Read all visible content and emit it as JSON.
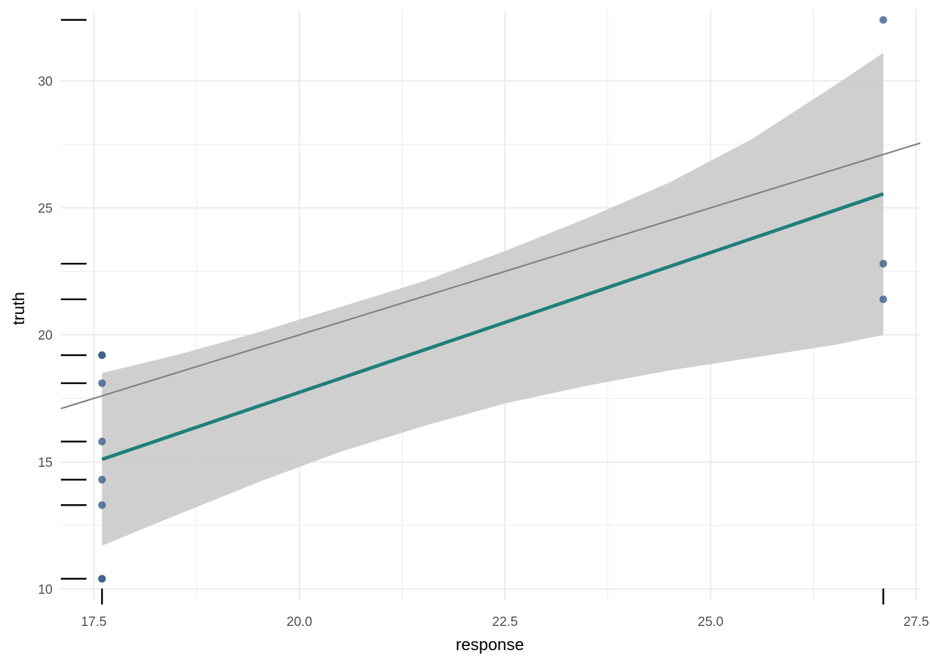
{
  "chart_data": {
    "type": "scatter",
    "title": "",
    "xlabel": "response",
    "ylabel": "truth",
    "xlim": [
      17.1,
      27.55
    ],
    "ylim": [
      9.55,
      32.8
    ],
    "x_ticks": [
      17.5,
      20.0,
      22.5,
      25.0,
      27.5
    ],
    "x_tick_labels": [
      "17.5",
      "20.0",
      "22.5",
      "25.0",
      "27.5"
    ],
    "y_ticks": [
      10,
      15,
      20,
      25,
      30
    ],
    "y_tick_labels": [
      "10",
      "15",
      "20",
      "25",
      "30"
    ],
    "grid": true,
    "legend": "none",
    "points": [
      {
        "x": 17.6,
        "y": 19.2
      },
      {
        "x": 17.6,
        "y": 19.2
      },
      {
        "x": 17.6,
        "y": 18.1
      },
      {
        "x": 17.6,
        "y": 15.8
      },
      {
        "x": 17.6,
        "y": 14.3
      },
      {
        "x": 17.6,
        "y": 13.3
      },
      {
        "x": 17.6,
        "y": 10.4
      },
      {
        "x": 17.6,
        "y": 10.4
      },
      {
        "x": 27.1,
        "y": 32.4
      },
      {
        "x": 27.1,
        "y": 22.8
      },
      {
        "x": 27.1,
        "y": 21.4
      }
    ],
    "fit_line": {
      "x": [
        17.6,
        27.1
      ],
      "y": [
        15.1,
        25.55
      ]
    },
    "confidence_band": {
      "x": [
        17.6,
        18.5,
        19.5,
        20.5,
        21.5,
        22.5,
        23.5,
        24.5,
        25.5,
        26.5,
        27.1
      ],
      "upper": [
        18.5,
        19.2,
        20.1,
        21.1,
        22.1,
        23.3,
        24.6,
        26.0,
        27.7,
        29.8,
        31.1
      ],
      "lower": [
        11.7,
        12.9,
        14.2,
        15.4,
        16.4,
        17.3,
        18.0,
        18.6,
        19.1,
        19.6,
        20.0
      ]
    },
    "reference_line": {
      "slope": 1,
      "intercept": 0
    },
    "rug_x": [
      17.6,
      27.1
    ],
    "rug_y": [
      32.4,
      22.8,
      21.4,
      19.2,
      18.1,
      15.8,
      14.3,
      13.3,
      10.4
    ],
    "colors": {
      "points": "#3b5f8a",
      "fit_line": "#1f7f7a",
      "band": "#cccccc",
      "reference_line": "#808080",
      "grid": "#ebebeb",
      "rug": "#000000"
    }
  }
}
